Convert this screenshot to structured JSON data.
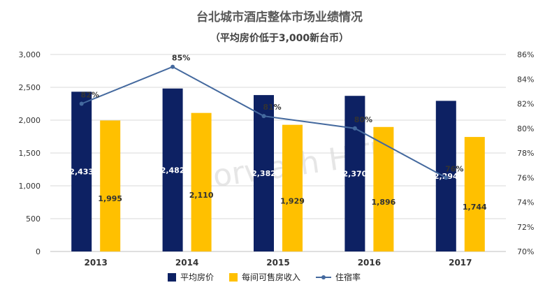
{
  "title": "台北城市酒店整体市场业绩情况",
  "subtitle": "（平均房价低于3,000新台币）",
  "watermark": "Horwath HTL",
  "colors": {
    "adr": "#0d2163",
    "revpar": "#ffc000",
    "occ": "#44699e",
    "grid": "#d9d9d9"
  },
  "chart_data": {
    "type": "bar",
    "categories": [
      "2013",
      "2014",
      "2015",
      "2016",
      "2017"
    ],
    "series": [
      {
        "name": "平均房价",
        "type": "bar",
        "axis": "left",
        "values": [
          2433,
          2482,
          2382,
          2370,
          2294
        ],
        "labels": [
          "2,433",
          "2,482",
          "2,382",
          "2,370",
          "2,294"
        ]
      },
      {
        "name": "每间可售房收入",
        "type": "bar",
        "axis": "left",
        "values": [
          1995,
          2110,
          1929,
          1896,
          1744
        ],
        "labels": [
          "1,995",
          "2,110",
          "1,929",
          "1,896",
          "1,744"
        ]
      },
      {
        "name": "住宿率",
        "type": "line",
        "axis": "right",
        "values": [
          82,
          85,
          81,
          80,
          76
        ],
        "labels": [
          "82%",
          "85%",
          "81%",
          "80%",
          "76%"
        ]
      }
    ],
    "y_left": {
      "min": 0,
      "max": 3000,
      "ticks": [
        "0",
        "500",
        "1,000",
        "1,500",
        "2,000",
        "2,500",
        "3,000"
      ]
    },
    "y_right": {
      "min": 70,
      "max": 86,
      "ticks": [
        "70%",
        "72%",
        "74%",
        "76%",
        "78%",
        "80%",
        "82%",
        "84%",
        "86%"
      ]
    },
    "legend_position": "bottom"
  }
}
